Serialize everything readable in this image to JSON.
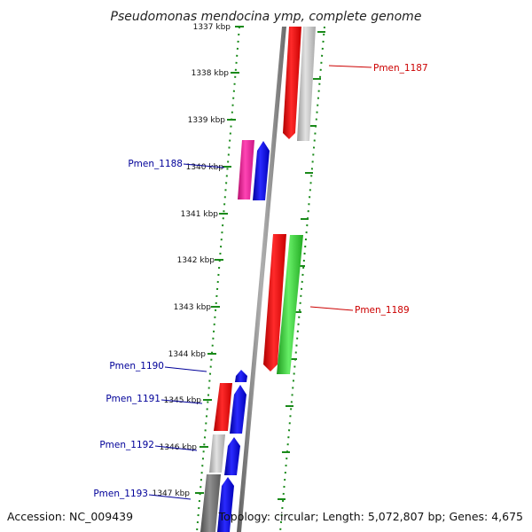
{
  "title": "Pseudomonas mendocina ymp, complete genome",
  "accession": "Accession: NC_009439",
  "genome_info": "Topology: circular; Length: 5,072,807 bp; Genes: 4,675",
  "tick_labels": [
    "1337 kbp",
    "1338 kbp",
    "1339 kbp",
    "1340 kbp",
    "1341 kbp",
    "1342 kbp",
    "1343 kbp",
    "1344 kbp",
    "1345 kbp",
    "1346 kbp",
    "1347 kbp"
  ],
  "gene_labels": {
    "pmen_1187": "Pmen_1187",
    "pmen_1188": "Pmen_1188",
    "pmen_1189": "Pmen_1189",
    "pmen_1190": "Pmen_1190",
    "pmen_1191": "Pmen_1191",
    "pmen_1192": "Pmen_1192",
    "pmen_1193": "Pmen_1193"
  },
  "colors": {
    "backbone": "#8a8a8a",
    "tick": "#1a8a1a",
    "label_red": "#cc0000",
    "label_blue": "#000099",
    "red": "#ff0000",
    "blue": "#0000ee",
    "magenta": "#ee1c9c",
    "green": "#33cc33",
    "gray": "#bcbcbc",
    "dark_gray": "#6e6e6e"
  }
}
